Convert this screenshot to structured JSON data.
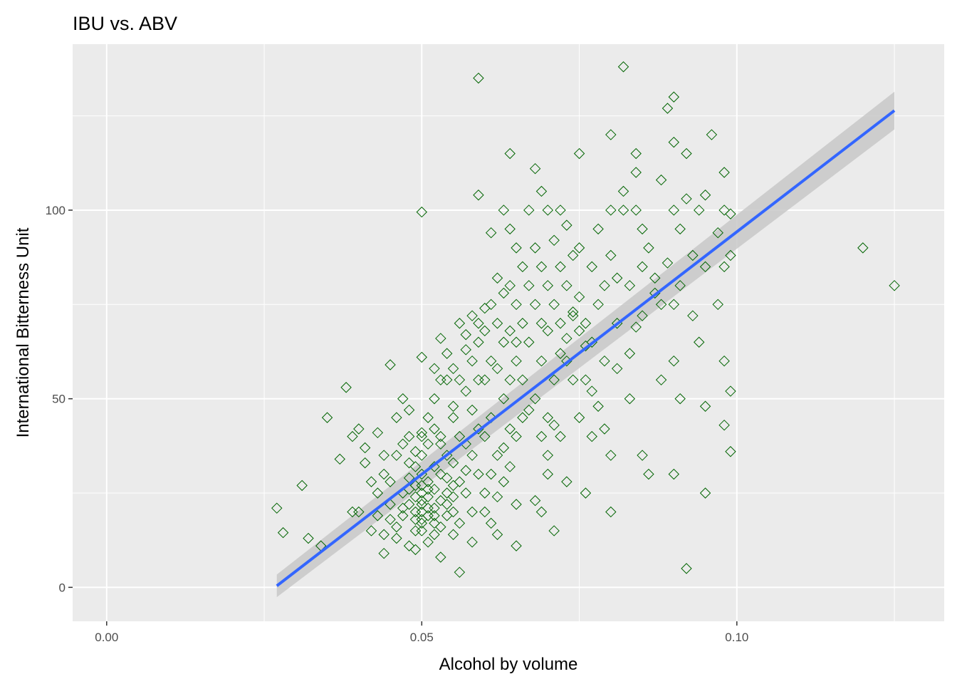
{
  "chart_data": {
    "type": "scatter",
    "title": "IBU vs. ABV",
    "xlabel": "Alcohol by volume",
    "ylabel": "International Bitterness Unit",
    "xlim": [
      -0.0054,
      0.1329
    ],
    "ylim": [
      -9,
      144
    ],
    "x_ticks": [
      0.0,
      0.05,
      0.1
    ],
    "x_tick_labels": [
      "0.00",
      "0.05",
      "0.10"
    ],
    "x_minor": [
      0.025,
      0.075,
      0.125
    ],
    "y_ticks": [
      0,
      50,
      100
    ],
    "y_tick_labels": [
      "0",
      "50",
      "100"
    ],
    "y_minor": [
      25,
      75,
      125
    ],
    "grid": true,
    "panel_background": "#ebebeb",
    "grid_color": "#ffffff",
    "point_shape": "open-diamond",
    "point_color": "#006400",
    "smooth": {
      "method": "linear",
      "color": "#3366ff",
      "band_color": "#c8c8c8",
      "x": [
        0.027,
        0.125
      ],
      "y": [
        0.4,
        126.4
      ],
      "ci_halfwidth": [
        3.0,
        5.0
      ]
    },
    "points": [
      [
        0.027,
        21
      ],
      [
        0.028,
        14.5
      ],
      [
        0.031,
        27
      ],
      [
        0.032,
        13
      ],
      [
        0.034,
        11
      ],
      [
        0.035,
        45
      ],
      [
        0.037,
        34
      ],
      [
        0.038,
        53
      ],
      [
        0.039,
        40
      ],
      [
        0.039,
        20
      ],
      [
        0.04,
        20
      ],
      [
        0.04,
        42
      ],
      [
        0.041,
        37
      ],
      [
        0.041,
        33
      ],
      [
        0.042,
        28
      ],
      [
        0.042,
        15
      ],
      [
        0.043,
        25
      ],
      [
        0.043,
        41
      ],
      [
        0.044,
        35
      ],
      [
        0.044,
        30
      ],
      [
        0.044,
        9
      ],
      [
        0.045,
        59
      ],
      [
        0.045,
        22
      ],
      [
        0.045,
        18
      ],
      [
        0.046,
        45
      ],
      [
        0.046,
        35
      ],
      [
        0.046,
        13
      ],
      [
        0.047,
        38
      ],
      [
        0.047,
        25
      ],
      [
        0.047,
        50
      ],
      [
        0.047,
        19
      ],
      [
        0.048,
        40
      ],
      [
        0.048,
        33
      ],
      [
        0.048,
        29
      ],
      [
        0.048,
        22
      ],
      [
        0.048,
        47
      ],
      [
        0.049,
        36
      ],
      [
        0.049,
        27
      ],
      [
        0.049,
        18
      ],
      [
        0.049,
        15
      ],
      [
        0.049,
        10
      ],
      [
        0.05,
        99.5
      ],
      [
        0.05,
        61
      ],
      [
        0.05,
        35
      ],
      [
        0.05,
        30
      ],
      [
        0.05,
        25
      ],
      [
        0.05,
        22
      ],
      [
        0.05,
        20
      ],
      [
        0.05,
        18
      ],
      [
        0.05,
        15
      ],
      [
        0.05,
        40
      ],
      [
        0.051,
        45
      ],
      [
        0.051,
        38
      ],
      [
        0.051,
        28
      ],
      [
        0.051,
        24
      ],
      [
        0.051,
        12
      ],
      [
        0.052,
        50
      ],
      [
        0.052,
        42
      ],
      [
        0.052,
        32
      ],
      [
        0.052,
        26
      ],
      [
        0.052,
        21
      ],
      [
        0.052,
        17
      ],
      [
        0.053,
        66
      ],
      [
        0.053,
        40
      ],
      [
        0.053,
        30
      ],
      [
        0.053,
        23
      ],
      [
        0.053,
        8
      ],
      [
        0.054,
        55
      ],
      [
        0.054,
        35
      ],
      [
        0.054,
        25
      ],
      [
        0.054,
        19
      ],
      [
        0.055,
        58
      ],
      [
        0.055,
        45
      ],
      [
        0.055,
        33
      ],
      [
        0.055,
        20
      ],
      [
        0.055,
        14
      ],
      [
        0.056,
        55
      ],
      [
        0.056,
        40
      ],
      [
        0.056,
        28
      ],
      [
        0.056,
        4
      ],
      [
        0.056,
        70
      ],
      [
        0.057,
        52
      ],
      [
        0.057,
        38
      ],
      [
        0.057,
        25
      ],
      [
        0.057,
        63
      ],
      [
        0.058,
        60
      ],
      [
        0.058,
        47
      ],
      [
        0.058,
        35
      ],
      [
        0.058,
        20
      ],
      [
        0.059,
        135
      ],
      [
        0.059,
        104
      ],
      [
        0.059,
        70
      ],
      [
        0.059,
        55
      ],
      [
        0.059,
        42
      ],
      [
        0.059,
        30
      ],
      [
        0.06,
        68
      ],
      [
        0.06,
        55
      ],
      [
        0.06,
        40
      ],
      [
        0.06,
        25
      ],
      [
        0.061,
        94
      ],
      [
        0.061,
        75
      ],
      [
        0.061,
        60
      ],
      [
        0.061,
        45
      ],
      [
        0.061,
        30
      ],
      [
        0.062,
        82
      ],
      [
        0.062,
        70
      ],
      [
        0.062,
        58
      ],
      [
        0.062,
        35
      ],
      [
        0.062,
        14
      ],
      [
        0.063,
        100
      ],
      [
        0.063,
        78
      ],
      [
        0.063,
        65
      ],
      [
        0.063,
        50
      ],
      [
        0.063,
        28
      ],
      [
        0.064,
        95
      ],
      [
        0.064,
        80
      ],
      [
        0.064,
        68
      ],
      [
        0.064,
        55
      ],
      [
        0.064,
        42
      ],
      [
        0.064,
        115
      ],
      [
        0.065,
        65
      ],
      [
        0.065,
        90
      ],
      [
        0.065,
        75
      ],
      [
        0.065,
        60
      ],
      [
        0.065,
        40
      ],
      [
        0.065,
        22
      ],
      [
        0.065,
        11
      ],
      [
        0.066,
        85
      ],
      [
        0.066,
        70
      ],
      [
        0.066,
        55
      ],
      [
        0.067,
        100
      ],
      [
        0.067,
        80
      ],
      [
        0.067,
        65
      ],
      [
        0.068,
        111
      ],
      [
        0.068,
        90
      ],
      [
        0.068,
        75
      ],
      [
        0.068,
        50
      ],
      [
        0.069,
        105
      ],
      [
        0.069,
        85
      ],
      [
        0.069,
        70
      ],
      [
        0.069,
        60
      ],
      [
        0.069,
        20
      ],
      [
        0.07,
        100
      ],
      [
        0.07,
        80
      ],
      [
        0.07,
        68
      ],
      [
        0.07,
        45
      ],
      [
        0.07,
        30
      ],
      [
        0.071,
        92
      ],
      [
        0.071,
        75
      ],
      [
        0.071,
        55
      ],
      [
        0.071,
        15
      ],
      [
        0.072,
        100
      ],
      [
        0.072,
        85
      ],
      [
        0.072,
        70
      ],
      [
        0.072,
        40
      ],
      [
        0.073,
        96
      ],
      [
        0.073,
        80
      ],
      [
        0.073,
        60
      ],
      [
        0.073,
        28
      ],
      [
        0.074,
        88
      ],
      [
        0.074,
        73
      ],
      [
        0.074,
        55
      ],
      [
        0.075,
        115
      ],
      [
        0.075,
        90
      ],
      [
        0.075,
        77
      ],
      [
        0.075,
        45
      ],
      [
        0.076,
        70
      ],
      [
        0.076,
        55
      ],
      [
        0.076,
        25
      ],
      [
        0.077,
        85
      ],
      [
        0.077,
        65
      ],
      [
        0.077,
        40
      ],
      [
        0.078,
        95
      ],
      [
        0.078,
        75
      ],
      [
        0.079,
        80
      ],
      [
        0.079,
        60
      ],
      [
        0.08,
        120
      ],
      [
        0.08,
        100
      ],
      [
        0.08,
        88
      ],
      [
        0.08,
        35
      ],
      [
        0.08,
        20
      ],
      [
        0.081,
        82
      ],
      [
        0.081,
        70
      ],
      [
        0.082,
        138
      ],
      [
        0.082,
        105
      ],
      [
        0.082,
        100
      ],
      [
        0.083,
        80
      ],
      [
        0.083,
        50
      ],
      [
        0.084,
        115
      ],
      [
        0.084,
        110
      ],
      [
        0.084,
        100
      ],
      [
        0.084,
        69
      ],
      [
        0.085,
        95
      ],
      [
        0.085,
        85
      ],
      [
        0.085,
        35
      ],
      [
        0.086,
        90
      ],
      [
        0.086,
        30
      ],
      [
        0.087,
        82
      ],
      [
        0.088,
        108
      ],
      [
        0.088,
        75
      ],
      [
        0.088,
        55
      ],
      [
        0.089,
        127
      ],
      [
        0.09,
        130
      ],
      [
        0.09,
        118
      ],
      [
        0.09,
        100
      ],
      [
        0.09,
        75
      ],
      [
        0.09,
        60
      ],
      [
        0.09,
        30
      ],
      [
        0.091,
        95
      ],
      [
        0.091,
        50
      ],
      [
        0.092,
        115
      ],
      [
        0.092,
        103
      ],
      [
        0.092,
        5
      ],
      [
        0.093,
        88
      ],
      [
        0.094,
        100
      ],
      [
        0.094,
        65
      ],
      [
        0.095,
        104
      ],
      [
        0.095,
        85
      ],
      [
        0.095,
        48
      ],
      [
        0.095,
        25
      ],
      [
        0.096,
        120
      ],
      [
        0.097,
        94
      ],
      [
        0.097,
        75
      ],
      [
        0.098,
        110
      ],
      [
        0.098,
        100
      ],
      [
        0.098,
        85
      ],
      [
        0.098,
        60
      ],
      [
        0.098,
        43
      ],
      [
        0.099,
        99
      ],
      [
        0.099,
        88
      ],
      [
        0.099,
        52
      ],
      [
        0.099,
        36
      ],
      [
        0.12,
        90
      ],
      [
        0.125,
        80
      ],
      [
        0.05,
        41
      ],
      [
        0.049,
        32
      ],
      [
        0.051,
        19
      ],
      [
        0.052,
        14
      ],
      [
        0.053,
        38
      ],
      [
        0.047,
        21
      ],
      [
        0.046,
        16
      ],
      [
        0.054,
        29
      ],
      [
        0.055,
        24
      ],
      [
        0.056,
        17
      ],
      [
        0.057,
        31
      ],
      [
        0.058,
        12
      ],
      [
        0.043,
        19
      ],
      [
        0.044,
        14
      ],
      [
        0.045,
        28
      ],
      [
        0.048,
        11
      ],
      [
        0.06,
        20
      ],
      [
        0.061,
        17
      ],
      [
        0.062,
        24
      ],
      [
        0.063,
        37
      ],
      [
        0.064,
        32
      ],
      [
        0.066,
        45
      ],
      [
        0.067,
        47
      ],
      [
        0.068,
        23
      ],
      [
        0.069,
        40
      ],
      [
        0.07,
        35
      ],
      [
        0.071,
        43
      ],
      [
        0.072,
        62
      ],
      [
        0.073,
        66
      ],
      [
        0.074,
        72
      ],
      [
        0.075,
        68
      ],
      [
        0.076,
        64
      ],
      [
        0.077,
        52
      ],
      [
        0.078,
        48
      ],
      [
        0.079,
        42
      ],
      [
        0.081,
        58
      ],
      [
        0.083,
        62
      ],
      [
        0.085,
        72
      ],
      [
        0.087,
        78
      ],
      [
        0.089,
        86
      ],
      [
        0.091,
        80
      ],
      [
        0.093,
        72
      ],
      [
        0.052,
        58
      ],
      [
        0.053,
        55
      ],
      [
        0.054,
        62
      ],
      [
        0.055,
        48
      ],
      [
        0.057,
        67
      ],
      [
        0.058,
        72
      ],
      [
        0.059,
        65
      ],
      [
        0.06,
        74
      ],
      [
        0.05,
        23
      ],
      [
        0.051,
        26
      ],
      [
        0.049,
        24
      ],
      [
        0.05,
        17
      ],
      [
        0.051,
        21
      ],
      [
        0.052,
        19
      ],
      [
        0.048,
        26
      ],
      [
        0.049,
        20
      ],
      [
        0.05,
        27
      ],
      [
        0.053,
        16
      ],
      [
        0.054,
        22
      ],
      [
        0.055,
        27
      ]
    ]
  }
}
